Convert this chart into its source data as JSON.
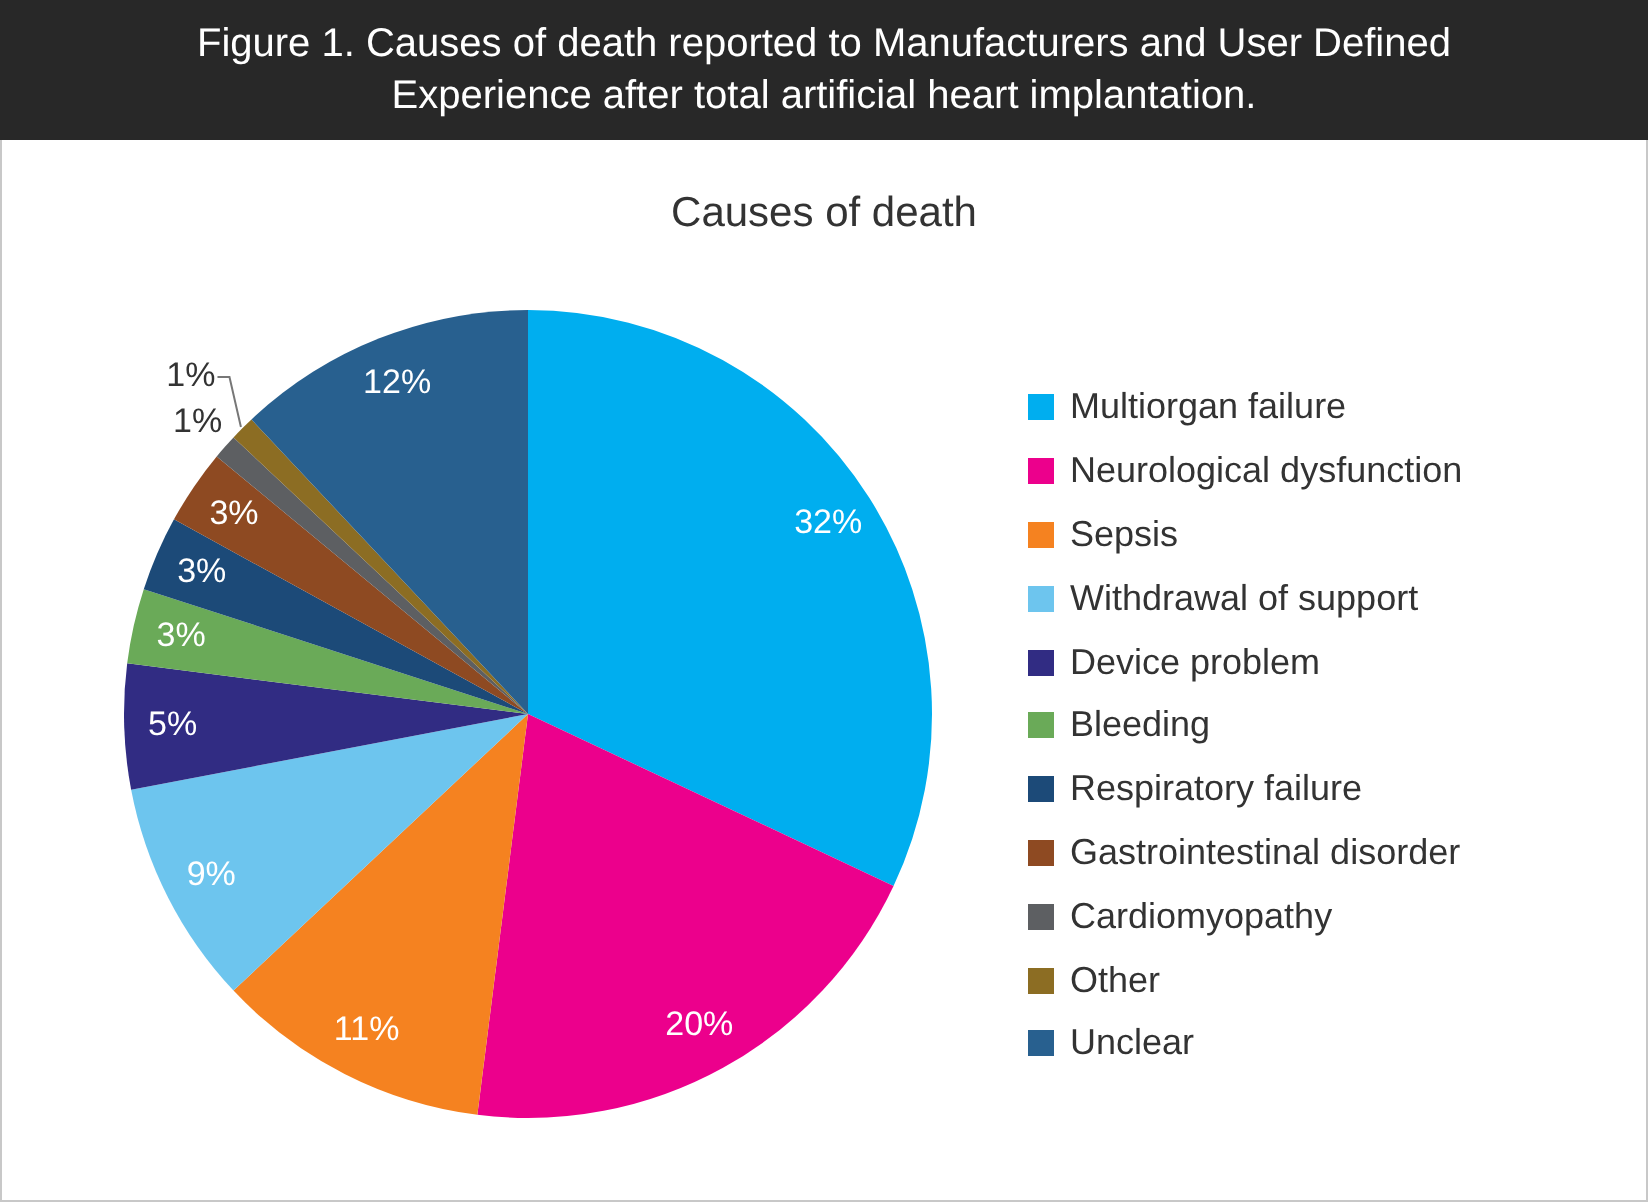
{
  "chart_data": {
    "type": "pie",
    "title": "Figure 1. Causes of death reported to Manufacturers and User Defined Experience after total artificial heart implantation.",
    "subtitle": "Causes of death",
    "categories": [
      "Multiorgan failure",
      "Neurological dysfunction",
      "Sepsis",
      "Withdrawal of support",
      "Device problem",
      "Bleeding",
      "Respiratory failure",
      "Gastrointestinal disorder",
      "Cardiomyopathy",
      "Other",
      "Unclear"
    ],
    "values": [
      32,
      20,
      11,
      9,
      5,
      3,
      3,
      3,
      1,
      1,
      12
    ],
    "colors": [
      "#00aeef",
      "#ec008c",
      "#f58220",
      "#6dc5ee",
      "#312c83",
      "#6aaa58",
      "#1c4a78",
      "#8e4a22",
      "#5d5f62",
      "#8c6d23",
      "#28608f"
    ],
    "value_labels": [
      "32%",
      "20%",
      "11%",
      "9%",
      "5%",
      "3%",
      "3%",
      "3%",
      "1%",
      "1%",
      "12%"
    ],
    "legend": "right"
  }
}
